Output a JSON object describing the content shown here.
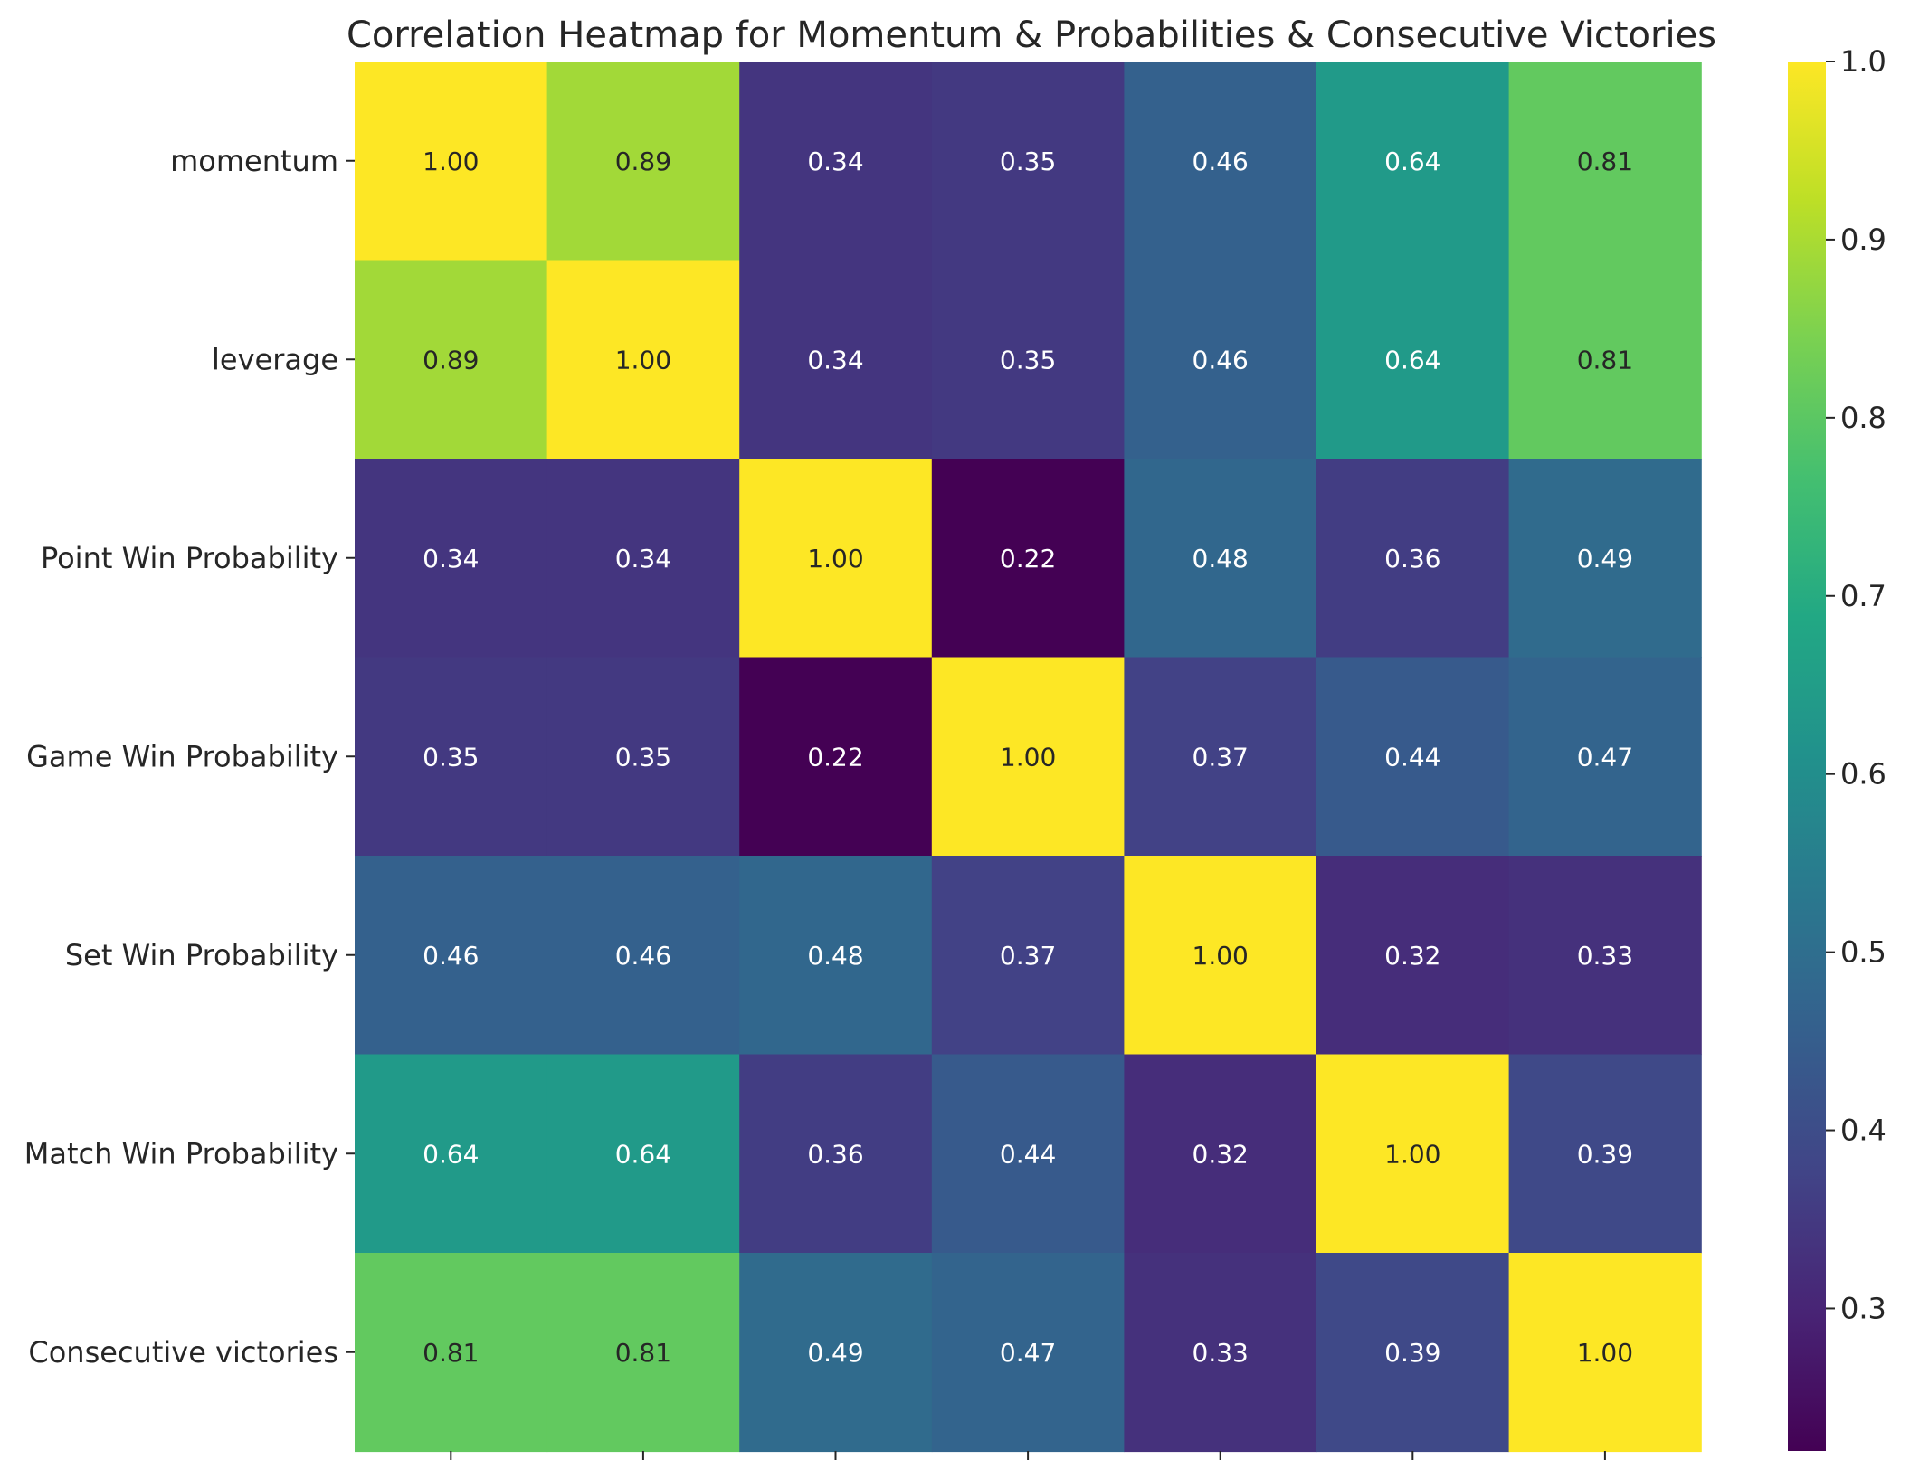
{
  "chart_data": {
    "type": "heatmap",
    "title": "Correlation Heatmap for Momentum & Probabilities & Consecutive Victories",
    "row_labels": [
      "momentum",
      "leverage",
      "Point Win Probability",
      "Game Win Probability",
      "Set Win Probability",
      "Match Win Probability",
      "Consecutive victories"
    ],
    "column_count": 7,
    "values": [
      [
        1.0,
        0.89,
        0.34,
        0.35,
        0.46,
        0.64,
        0.81
      ],
      [
        0.89,
        1.0,
        0.34,
        0.35,
        0.46,
        0.64,
        0.81
      ],
      [
        0.34,
        0.34,
        1.0,
        0.22,
        0.48,
        0.36,
        0.49
      ],
      [
        0.35,
        0.35,
        0.22,
        1.0,
        0.37,
        0.44,
        0.47
      ],
      [
        0.46,
        0.46,
        0.48,
        0.37,
        1.0,
        0.32,
        0.33
      ],
      [
        0.64,
        0.64,
        0.36,
        0.44,
        0.32,
        1.0,
        0.39
      ],
      [
        0.81,
        0.81,
        0.49,
        0.47,
        0.33,
        0.39,
        1.0
      ]
    ],
    "value_format": "2 decimals",
    "colormap": "viridis",
    "color_range": [
      0.22,
      1.0
    ],
    "colorbar_ticks": [
      "0.3",
      "0.4",
      "0.5",
      "0.6",
      "0.7",
      "0.8",
      "0.9",
      "1.0"
    ],
    "colorbar_position": "right"
  }
}
